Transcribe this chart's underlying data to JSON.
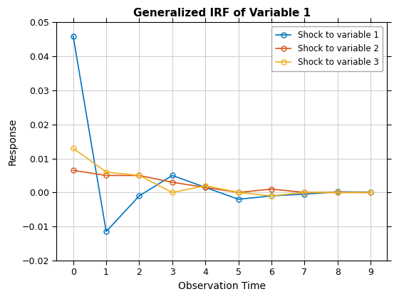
{
  "title": "Generalized IRF of Variable 1",
  "xlabel": "Observation Time",
  "ylabel": "Response",
  "x": [
    0,
    1,
    2,
    3,
    4,
    5,
    6,
    7,
    8,
    9
  ],
  "series": [
    {
      "label": "Shock to variable 1",
      "color": "#0072BD",
      "y": [
        0.046,
        -0.0115,
        -0.001,
        0.005,
        0.0015,
        -0.002,
        -0.001,
        -0.0005,
        0.0002,
        0.0001
      ]
    },
    {
      "label": "Shock to variable 2",
      "color": "#D95319",
      "y": [
        0.0065,
        0.005,
        0.005,
        0.003,
        0.0015,
        0.0,
        0.001,
        0.0,
        0.0,
        0.0
      ]
    },
    {
      "label": "Shock to variable 3",
      "color": "#EDB120",
      "y": [
        0.013,
        0.006,
        0.005,
        0.0,
        0.002,
        0.0,
        -0.001,
        0.0,
        0.0,
        0.0
      ]
    }
  ],
  "ylim": [
    -0.02,
    0.05
  ],
  "xlim": [
    -0.5,
    9.5
  ],
  "yticks": [
    -0.02,
    -0.01,
    0.0,
    0.01,
    0.02,
    0.03,
    0.04,
    0.05
  ],
  "xticks": [
    0,
    1,
    2,
    3,
    4,
    5,
    6,
    7,
    8,
    9
  ],
  "grid_color": "#D0D0D0",
  "bg_color": "#FFFFFF",
  "legend_loc": "upper right",
  "marker": "o",
  "marker_size": 5,
  "linewidth": 1.2,
  "title_fontsize": 11,
  "label_fontsize": 10,
  "tick_fontsize": 9,
  "legend_fontsize": 8.5
}
